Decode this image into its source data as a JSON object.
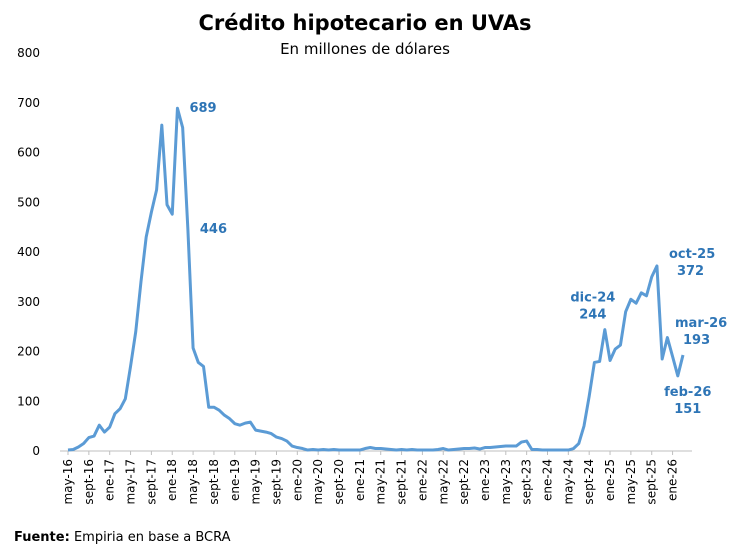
{
  "chart_data": {
    "type": "line",
    "title": "Crédito hipotecario en UVAs",
    "subtitle": "En millones de dólares",
    "source_label": "Fuente:",
    "source": "Empiria en base a BCRA",
    "categories": [
      "may-16",
      null,
      null,
      null,
      "sept-16",
      null,
      null,
      null,
      "ene-17",
      null,
      null,
      null,
      "may-17",
      null,
      null,
      null,
      "sept-17",
      null,
      null,
      null,
      "ene-18",
      null,
      null,
      null,
      "may-18",
      null,
      null,
      null,
      "sept-18",
      null,
      null,
      null,
      "ene-19",
      null,
      null,
      null,
      "may-19",
      null,
      null,
      null,
      "sept-19",
      null,
      null,
      null,
      "ene-20",
      null,
      null,
      null,
      "may-20",
      null,
      null,
      null,
      "sept-20",
      null,
      null,
      null,
      "ene-21",
      null,
      null,
      null,
      "may-21",
      null,
      null,
      null,
      "sept-21",
      null,
      null,
      null,
      "ene-22",
      null,
      null,
      null,
      "may-22",
      null,
      null,
      null,
      "sept-22",
      null,
      null,
      null,
      "ene-23",
      null,
      null,
      null,
      "may-23",
      null,
      null,
      null,
      "sept-23",
      null,
      null,
      null,
      "ene-24",
      null,
      null,
      null,
      "may-24",
      null,
      null,
      null,
      "sept-24",
      null,
      null,
      null,
      "ene-25",
      null,
      null,
      null,
      "may-25",
      null,
      null,
      null,
      "sept-25",
      null,
      null,
      null,
      "ene-26",
      null,
      null
    ],
    "values": [
      2,
      3,
      8,
      15,
      27,
      30,
      52,
      38,
      48,
      75,
      85,
      105,
      170,
      240,
      340,
      430,
      480,
      525,
      655,
      495,
      476,
      689,
      650,
      446,
      207,
      178,
      170,
      88,
      88,
      82,
      72,
      65,
      55,
      52,
      56,
      58,
      42,
      40,
      38,
      35,
      28,
      25,
      20,
      10,
      7,
      5,
      2,
      3,
      2,
      3,
      2,
      3,
      2,
      2,
      2,
      2,
      2,
      5,
      7,
      5,
      5,
      4,
      3,
      2,
      3,
      2,
      3,
      2,
      2,
      2,
      2,
      3,
      5,
      2,
      3,
      4,
      5,
      5,
      6,
      4,
      7,
      7,
      8,
      9,
      10,
      10,
      10,
      18,
      20,
      3,
      3,
      2,
      2,
      2,
      2,
      2,
      2,
      5,
      15,
      50,
      110,
      178,
      180,
      244,
      182,
      205,
      213,
      280,
      305,
      297,
      318,
      312,
      350,
      372,
      185,
      228,
      190,
      151,
      193
    ],
    "value_labels": [
      null,
      null,
      null,
      null,
      null,
      null,
      null,
      null,
      null,
      null,
      null,
      null,
      null,
      null,
      null,
      null,
      null,
      null,
      null,
      null,
      null,
      "689",
      null,
      "446",
      null,
      null,
      null,
      null,
      null,
      null,
      null,
      null,
      null,
      null,
      null,
      null,
      null,
      null,
      null,
      null,
      null,
      null,
      null,
      null,
      null,
      null,
      null,
      null,
      null,
      null,
      null,
      null,
      null,
      null,
      null,
      null,
      null,
      null,
      null,
      null,
      null,
      null,
      null,
      null,
      null,
      null,
      null,
      null,
      null,
      null,
      null,
      null,
      null,
      null,
      null,
      null,
      null,
      null,
      null,
      null,
      null,
      null,
      null,
      null,
      null,
      null,
      null,
      null,
      null,
      null,
      null,
      null,
      null,
      null,
      null,
      null,
      null,
      null,
      null,
      null,
      null,
      null,
      null,
      "244",
      null,
      null,
      null,
      null,
      null,
      null,
      null,
      null,
      null,
      "372",
      null,
      null,
      null,
      "151",
      "193"
    ],
    "point_labels": [
      null,
      null,
      null,
      null,
      null,
      null,
      null,
      null,
      null,
      null,
      null,
      null,
      null,
      null,
      null,
      null,
      null,
      null,
      null,
      null,
      null,
      null,
      null,
      null,
      null,
      null,
      null,
      null,
      null,
      null,
      null,
      null,
      null,
      null,
      null,
      null,
      null,
      null,
      null,
      null,
      null,
      null,
      null,
      null,
      null,
      null,
      null,
      null,
      null,
      null,
      null,
      null,
      null,
      null,
      null,
      null,
      null,
      null,
      null,
      null,
      null,
      null,
      null,
      null,
      null,
      null,
      null,
      null,
      null,
      null,
      null,
      null,
      null,
      null,
      null,
      null,
      null,
      null,
      null,
      null,
      null,
      null,
      null,
      null,
      null,
      null,
      null,
      null,
      null,
      null,
      null,
      null,
      null,
      null,
      null,
      null,
      null,
      null,
      null,
      null,
      null,
      null,
      null,
      "dic-24",
      null,
      null,
      null,
      null,
      null,
      null,
      null,
      null,
      null,
      "oct-25",
      null,
      null,
      null,
      "feb-26",
      "mar-26"
    ],
    "color": "#5b9bd5",
    "ylim": [
      0,
      800
    ],
    "yticks": [
      0,
      100,
      200,
      300,
      400,
      500,
      600,
      700,
      800
    ],
    "grid": false
  }
}
